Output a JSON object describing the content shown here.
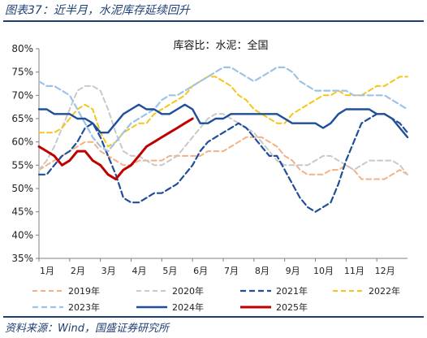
{
  "figure": {
    "title": "图表37：近半月，水泥库存延续回升",
    "source": "资料来源：Wind，国盛证券研究所"
  },
  "chart_data": {
    "type": "line",
    "subtitle": "库容比：水泥：全国",
    "ylim": [
      0.35,
      0.8
    ],
    "yticks": [
      "35%",
      "40%",
      "45%",
      "50%",
      "55%",
      "60%",
      "65%",
      "70%",
      "75%",
      "80%"
    ],
    "x_range": [
      0,
      48
    ],
    "xticks": [
      {
        "label": "1月",
        "x": 0
      },
      {
        "label": "2月",
        "x": 4
      },
      {
        "label": "3月",
        "x": 8
      },
      {
        "label": "4月",
        "x": 12
      },
      {
        "label": "5月",
        "x": 16
      },
      {
        "label": "6月",
        "x": 20
      },
      {
        "label": "7月",
        "x": 24
      },
      {
        "label": "8月",
        "x": 28
      },
      {
        "label": "9月",
        "x": 32
      },
      {
        "label": "10月",
        "x": 36
      },
      {
        "label": "11月",
        "x": 40
      },
      {
        "label": "12月",
        "x": 44
      }
    ],
    "grid": false,
    "legend_position": "bottom",
    "series": [
      {
        "name": "2019年",
        "color": "#f4b183",
        "dash": "6,4",
        "width": 2,
        "x": [
          0,
          1,
          2,
          3,
          4,
          5,
          6,
          7,
          8,
          9,
          10,
          11,
          12,
          13,
          14,
          15,
          16,
          17,
          18,
          19,
          20,
          21,
          22,
          23,
          24,
          25,
          26,
          27,
          28,
          29,
          30,
          31,
          32,
          33,
          34,
          35,
          36,
          37,
          38,
          39,
          40,
          41,
          42,
          43,
          44,
          45,
          46,
          47,
          48
        ],
        "y": [
          0.54,
          0.55,
          0.56,
          0.57,
          0.58,
          0.59,
          0.6,
          0.6,
          0.58,
          0.57,
          0.56,
          0.55,
          0.55,
          0.56,
          0.56,
          0.56,
          0.56,
          0.57,
          0.57,
          0.57,
          0.57,
          0.57,
          0.58,
          0.58,
          0.58,
          0.59,
          0.6,
          0.61,
          0.61,
          0.61,
          0.6,
          0.59,
          0.57,
          0.56,
          0.54,
          0.53,
          0.53,
          0.53,
          0.54,
          0.54,
          0.55,
          0.54,
          0.52,
          0.52,
          0.52,
          0.52,
          0.53,
          0.54,
          0.53
        ]
      },
      {
        "name": "2020年",
        "color": "#c9c9c9",
        "dash": "6,4",
        "width": 2,
        "x": [
          0,
          1,
          2,
          3,
          4,
          5,
          6,
          7,
          8,
          9,
          10,
          11,
          12,
          13,
          14,
          15,
          16,
          17,
          18,
          19,
          20,
          21,
          22,
          23,
          24,
          25,
          26,
          27,
          28,
          29,
          30,
          31,
          32,
          33,
          34,
          35,
          36,
          37,
          38,
          39,
          40,
          41,
          42,
          43,
          44,
          45,
          46,
          47,
          48
        ],
        "y": [
          0.54,
          0.56,
          0.59,
          0.63,
          0.67,
          0.71,
          0.72,
          0.72,
          0.71,
          0.67,
          0.62,
          0.58,
          0.57,
          0.57,
          0.56,
          0.55,
          0.55,
          0.56,
          0.57,
          0.59,
          0.61,
          0.63,
          0.65,
          0.66,
          0.66,
          0.65,
          0.64,
          0.63,
          0.62,
          0.6,
          0.58,
          0.56,
          0.55,
          0.55,
          0.55,
          0.55,
          0.56,
          0.57,
          0.57,
          0.56,
          0.55,
          0.54,
          0.55,
          0.56,
          0.56,
          0.56,
          0.56,
          0.55,
          0.53
        ]
      },
      {
        "name": "2021年",
        "color": "#1f4e9a",
        "dash": "7,4",
        "width": 2.2,
        "x": [
          0,
          1,
          2,
          3,
          4,
          5,
          6,
          7,
          8,
          9,
          10,
          11,
          12,
          13,
          14,
          15,
          16,
          17,
          18,
          19,
          20,
          21,
          22,
          23,
          24,
          25,
          26,
          27,
          28,
          29,
          30,
          31,
          32,
          33,
          34,
          35,
          36,
          37,
          38,
          39,
          40,
          41,
          42,
          43,
          44,
          45,
          46,
          47,
          48
        ],
        "y": [
          0.53,
          0.53,
          0.55,
          0.57,
          0.58,
          0.6,
          0.63,
          0.64,
          0.61,
          0.57,
          0.53,
          0.48,
          0.47,
          0.47,
          0.48,
          0.49,
          0.49,
          0.5,
          0.51,
          0.53,
          0.55,
          0.58,
          0.6,
          0.61,
          0.62,
          0.63,
          0.64,
          0.63,
          0.61,
          0.59,
          0.57,
          0.57,
          0.54,
          0.51,
          0.48,
          0.46,
          0.45,
          0.46,
          0.47,
          0.51,
          0.56,
          0.6,
          0.64,
          0.65,
          0.66,
          0.66,
          0.65,
          0.64,
          0.62
        ]
      },
      {
        "name": "2022年",
        "color": "#f5c518",
        "dash": "6,4",
        "width": 2,
        "x": [
          0,
          1,
          2,
          3,
          4,
          5,
          6,
          7,
          8,
          9,
          10,
          11,
          12,
          13,
          14,
          15,
          16,
          17,
          18,
          19,
          20,
          21,
          22,
          23,
          24,
          25,
          26,
          27,
          28,
          29,
          30,
          31,
          32,
          33,
          34,
          35,
          36,
          37,
          38,
          39,
          40,
          41,
          42,
          43,
          44,
          45,
          46,
          47,
          48
        ],
        "y": [
          0.62,
          0.62,
          0.62,
          0.63,
          0.65,
          0.67,
          0.68,
          0.67,
          0.62,
          0.59,
          0.6,
          0.62,
          0.63,
          0.64,
          0.64,
          0.66,
          0.67,
          0.68,
          0.69,
          0.7,
          0.72,
          0.73,
          0.74,
          0.74,
          0.73,
          0.72,
          0.7,
          0.69,
          0.67,
          0.66,
          0.65,
          0.64,
          0.64,
          0.66,
          0.67,
          0.68,
          0.69,
          0.7,
          0.7,
          0.71,
          0.7,
          0.7,
          0.7,
          0.71,
          0.72,
          0.72,
          0.73,
          0.74,
          0.74
        ]
      },
      {
        "name": "2023年",
        "color": "#9dc3e6",
        "dash": "7,4",
        "width": 2.2,
        "x": [
          0,
          1,
          2,
          3,
          4,
          5,
          6,
          7,
          8,
          9,
          10,
          11,
          12,
          13,
          14,
          15,
          16,
          17,
          18,
          19,
          20,
          21,
          22,
          23,
          24,
          25,
          26,
          27,
          28,
          29,
          30,
          31,
          32,
          33,
          34,
          35,
          36,
          37,
          38,
          39,
          40,
          41,
          42,
          43,
          44,
          45,
          46,
          47,
          48
        ],
        "y": [
          0.73,
          0.72,
          0.72,
          0.71,
          0.7,
          0.67,
          0.64,
          0.61,
          0.59,
          0.58,
          0.6,
          0.62,
          0.64,
          0.65,
          0.66,
          0.67,
          0.69,
          0.7,
          0.7,
          0.71,
          0.72,
          0.73,
          0.74,
          0.75,
          0.76,
          0.76,
          0.75,
          0.74,
          0.73,
          0.74,
          0.75,
          0.76,
          0.76,
          0.75,
          0.73,
          0.72,
          0.71,
          0.71,
          0.71,
          0.71,
          0.71,
          0.7,
          0.7,
          0.7,
          0.7,
          0.7,
          0.69,
          0.68,
          0.67
        ]
      },
      {
        "name": "2024年",
        "color": "#1f4e9a",
        "dash": "",
        "width": 2.4,
        "x": [
          0,
          1,
          2,
          3,
          4,
          5,
          6,
          7,
          8,
          9,
          10,
          11,
          12,
          13,
          14,
          15,
          16,
          17,
          18,
          19,
          20,
          21,
          22,
          23,
          24,
          25,
          26,
          27,
          28,
          29,
          30,
          31,
          32,
          33,
          34,
          35,
          36,
          37,
          38,
          39,
          40,
          41,
          42,
          43,
          44,
          45,
          46,
          47,
          48
        ],
        "y": [
          0.67,
          0.67,
          0.66,
          0.66,
          0.66,
          0.65,
          0.65,
          0.64,
          0.62,
          0.62,
          0.64,
          0.66,
          0.67,
          0.68,
          0.67,
          0.67,
          0.66,
          0.66,
          0.67,
          0.68,
          0.67,
          0.64,
          0.64,
          0.65,
          0.65,
          0.66,
          0.66,
          0.66,
          0.66,
          0.66,
          0.66,
          0.66,
          0.65,
          0.64,
          0.64,
          0.64,
          0.64,
          0.63,
          0.64,
          0.66,
          0.67,
          0.67,
          0.67,
          0.67,
          0.66,
          0.66,
          0.65,
          0.63,
          0.61
        ]
      },
      {
        "name": "2025年",
        "color": "#c00000",
        "dash": "",
        "width": 3,
        "x": [
          0,
          1,
          2,
          3,
          4,
          5,
          6,
          7,
          8,
          9,
          10,
          11,
          12,
          13,
          14,
          15,
          16,
          17,
          18,
          19,
          20
        ],
        "y": [
          0.59,
          0.58,
          0.57,
          0.55,
          0.56,
          0.58,
          0.58,
          0.56,
          0.55,
          0.53,
          0.52,
          0.54,
          0.55,
          0.57,
          0.59,
          0.6,
          0.61,
          0.62,
          0.63,
          0.64,
          0.65
        ]
      }
    ]
  }
}
